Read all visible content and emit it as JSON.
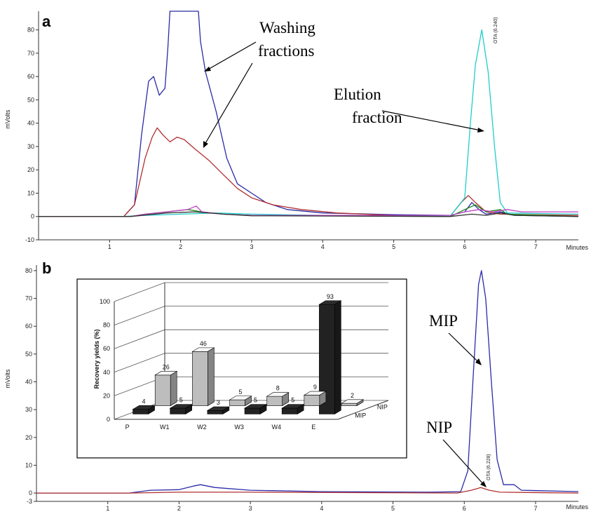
{
  "chart_data": [
    {
      "panel": "a",
      "type": "line",
      "xlabel": "Minutes",
      "ylabel": "mVolts",
      "xlim": [
        0,
        7.6
      ],
      "ylim": [
        -10,
        88
      ],
      "xticks": [
        1,
        2,
        3,
        4,
        5,
        6,
        7
      ],
      "yticks": [
        -10,
        0,
        10,
        20,
        30,
        40,
        50,
        60,
        70,
        80
      ],
      "annotations": [
        {
          "text": "Washing",
          "role": "washing-line1"
        },
        {
          "text": "fractions",
          "role": "washing-line2"
        },
        {
          "text": "Elution",
          "role": "elution-line1"
        },
        {
          "text": "fraction",
          "role": "elution-line2"
        }
      ],
      "peak_label": "OTA (6.240)",
      "series": [
        {
          "color": "#2a2aa8",
          "points": [
            [
              0,
              0
            ],
            [
              1.2,
              0
            ],
            [
              1.35,
              5
            ],
            [
              1.45,
              35
            ],
            [
              1.55,
              58
            ],
            [
              1.62,
              60
            ],
            [
              1.7,
              52
            ],
            [
              1.78,
              55
            ],
            [
              1.82,
              72
            ],
            [
              1.85,
              88
            ],
            [
              2.25,
              88
            ],
            [
              2.28,
              75
            ],
            [
              2.35,
              62
            ],
            [
              2.5,
              45
            ],
            [
              2.65,
              25
            ],
            [
              2.8,
              14
            ],
            [
              3.0,
              10
            ],
            [
              3.2,
              6
            ],
            [
              3.5,
              3
            ],
            [
              4,
              1.5
            ],
            [
              5,
              0.8
            ],
            [
              5.8,
              0.5
            ],
            [
              6.0,
              2
            ],
            [
              6.1,
              6
            ],
            [
              6.2,
              3
            ],
            [
              6.3,
              1
            ],
            [
              6.5,
              2
            ],
            [
              6.7,
              0.5
            ],
            [
              7.6,
              0
            ]
          ]
        },
        {
          "color": "#b03030",
          "points": [
            [
              0,
              0
            ],
            [
              1.2,
              0
            ],
            [
              1.35,
              5
            ],
            [
              1.5,
              25
            ],
            [
              1.6,
              34
            ],
            [
              1.67,
              38
            ],
            [
              1.75,
              35
            ],
            [
              1.85,
              32
            ],
            [
              1.95,
              34
            ],
            [
              2.05,
              33
            ],
            [
              2.2,
              29
            ],
            [
              2.4,
              24
            ],
            [
              2.6,
              18
            ],
            [
              2.8,
              12
            ],
            [
              3.0,
              8
            ],
            [
              3.3,
              5
            ],
            [
              3.7,
              3
            ],
            [
              4.2,
              1.5
            ],
            [
              5,
              0.5
            ],
            [
              5.8,
              0.3
            ],
            [
              5.95,
              6
            ],
            [
              6.05,
              9
            ],
            [
              6.15,
              6
            ],
            [
              6.3,
              2
            ],
            [
              6.5,
              1
            ],
            [
              7.6,
              0.5
            ]
          ]
        },
        {
          "color": "#22cccc",
          "points": [
            [
              0,
              0
            ],
            [
              1.2,
              0
            ],
            [
              1.5,
              0.5
            ],
            [
              2.0,
              1
            ],
            [
              2.5,
              1.5
            ],
            [
              3.0,
              1
            ],
            [
              4,
              0.5
            ],
            [
              5.8,
              0.3
            ],
            [
              6.0,
              8
            ],
            [
              6.08,
              40
            ],
            [
              6.15,
              65
            ],
            [
              6.24,
              80
            ],
            [
              6.33,
              62
            ],
            [
              6.42,
              30
            ],
            [
              6.5,
              6
            ],
            [
              6.6,
              1.5
            ],
            [
              7.6,
              1
            ]
          ]
        },
        {
          "color": "#1e8a1e",
          "points": [
            [
              0,
              0
            ],
            [
              1.3,
              0
            ],
            [
              1.5,
              1
            ],
            [
              1.8,
              2
            ],
            [
              2.1,
              3
            ],
            [
              2.3,
              2
            ],
            [
              2.6,
              1
            ],
            [
              3,
              0.5
            ],
            [
              5.8,
              0
            ],
            [
              6.0,
              3
            ],
            [
              6.15,
              5
            ],
            [
              6.3,
              2
            ],
            [
              6.5,
              3
            ],
            [
              6.6,
              1
            ],
            [
              7.6,
              0
            ]
          ]
        },
        {
          "color": "#c040c0",
          "points": [
            [
              0,
              0
            ],
            [
              1.3,
              0
            ],
            [
              1.5,
              1
            ],
            [
              1.8,
              2
            ],
            [
              2.1,
              3
            ],
            [
              2.22,
              4.5
            ],
            [
              2.3,
              2
            ],
            [
              2.6,
              1
            ],
            [
              3,
              0.5
            ],
            [
              5.8,
              0.5
            ],
            [
              6.0,
              2
            ],
            [
              6.2,
              3
            ],
            [
              6.4,
              2
            ],
            [
              6.6,
              3
            ],
            [
              6.8,
              2
            ],
            [
              7.6,
              2
            ]
          ]
        },
        {
          "color": "#333333",
          "points": [
            [
              0,
              0
            ],
            [
              1.3,
              0
            ],
            [
              1.8,
              1.5
            ],
            [
              2.2,
              2
            ],
            [
              2.6,
              1
            ],
            [
              3,
              0.3
            ],
            [
              5.8,
              0
            ],
            [
              6.1,
              1
            ],
            [
              6.3,
              0.5
            ],
            [
              6.5,
              1.5
            ],
            [
              6.7,
              0.5
            ],
            [
              7.6,
              0
            ]
          ]
        }
      ]
    },
    {
      "panel": "b",
      "type": "line",
      "xlabel": "Minutes",
      "ylabel": "mVolts",
      "xlim": [
        0,
        7.6
      ],
      "ylim": [
        -3,
        82
      ],
      "xticks": [
        1,
        2,
        3,
        4,
        5,
        6,
        7
      ],
      "yticks": [
        -3,
        0,
        10,
        20,
        30,
        40,
        50,
        60,
        70,
        80
      ],
      "annotations": [
        {
          "text": "MIP",
          "role": "mip"
        },
        {
          "text": "NIP",
          "role": "nip"
        }
      ],
      "peak_label": "OTA (6.228)",
      "series": [
        {
          "name": "MIP",
          "color": "#2a2aa8",
          "points": [
            [
              0,
              0
            ],
            [
              1.3,
              0
            ],
            [
              1.6,
              1
            ],
            [
              2.0,
              1.2
            ],
            [
              2.2,
              2.5
            ],
            [
              2.3,
              3
            ],
            [
              2.5,
              2
            ],
            [
              3,
              1
            ],
            [
              4,
              0.5
            ],
            [
              5.5,
              0.3
            ],
            [
              5.95,
              0.5
            ],
            [
              6.05,
              8
            ],
            [
              6.12,
              40
            ],
            [
              6.2,
              75
            ],
            [
              6.24,
              80
            ],
            [
              6.3,
              70
            ],
            [
              6.38,
              40
            ],
            [
              6.46,
              12
            ],
            [
              6.55,
              3
            ],
            [
              6.7,
              3
            ],
            [
              6.8,
              1
            ],
            [
              7.6,
              0.5
            ]
          ]
        },
        {
          "name": "NIP",
          "color": "#b03030",
          "points": [
            [
              0,
              0
            ],
            [
              1.3,
              0
            ],
            [
              2,
              0.3
            ],
            [
              3,
              0.3
            ],
            [
              5.9,
              0
            ],
            [
              6.1,
              1
            ],
            [
              6.23,
              2
            ],
            [
              6.35,
              1
            ],
            [
              6.5,
              0.3
            ],
            [
              7.6,
              0
            ]
          ]
        }
      ]
    },
    {
      "panel": "b-inset",
      "type": "bar",
      "ylabel": "Recovery yields (%)",
      "ylim": [
        0,
        100
      ],
      "yticks": [
        0,
        20,
        40,
        60,
        80,
        100
      ],
      "categories": [
        "P",
        "W1",
        "W2",
        "W3",
        "W4",
        "E"
      ],
      "series": [
        {
          "name": "NIP",
          "color": "#bdbdbd",
          "values": [
            26,
            46,
            5,
            8,
            9,
            2
          ]
        },
        {
          "name": "MIP",
          "color": "#222222",
          "values": [
            4,
            5,
            3,
            5,
            5,
            93
          ]
        }
      ]
    }
  ]
}
